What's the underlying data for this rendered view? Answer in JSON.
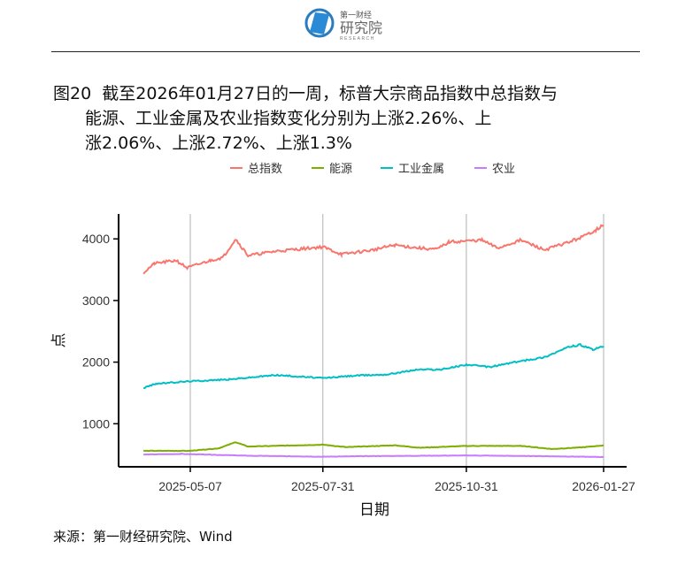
{
  "logo": {
    "line1": "第一财经",
    "line2": "研究院",
    "line3": "RESEARCH"
  },
  "title": {
    "prefix": "图20",
    "line1": "截至2026年01月27日的一周，标普大宗商品指数中总指数与",
    "line2": "能源、工业金属及农业指数变化分别为上涨2.26%、上",
    "line3": "涨2.06%、上涨2.72%、上涨1.3%"
  },
  "source": "来源：第一财经研究院、Wind",
  "chart_data": {
    "type": "line",
    "xlabel": "日期",
    "ylabel": "点",
    "legend_position": "top",
    "grid": "vertical major x only",
    "ylim": [
      0,
      4400
    ],
    "yticks": [
      1000,
      2000,
      3000,
      4000
    ],
    "xticks": [
      "2025-05-07",
      "2025-07-31",
      "2025-10-31",
      "2026-01-27"
    ],
    "series": [
      {
        "name": "总指数",
        "color": "#F8766D",
        "x": [
          "2025-04-07",
          "2025-04-14",
          "2025-04-28",
          "2025-05-05",
          "2025-05-20",
          "2025-05-28",
          "2025-06-05",
          "2025-06-13",
          "2025-07-01",
          "2025-07-31",
          "2025-08-12",
          "2025-09-01",
          "2025-09-15",
          "2025-10-01",
          "2025-10-12",
          "2025-10-20",
          "2025-11-10",
          "2025-11-20",
          "2025-12-05",
          "2025-12-20",
          "2026-01-05",
          "2026-01-15",
          "2026-01-22",
          "2026-01-27"
        ],
        "values": [
          3450,
          3600,
          3650,
          3530,
          3650,
          3700,
          4000,
          3730,
          3800,
          3870,
          3750,
          3820,
          3900,
          3850,
          3830,
          3950,
          3980,
          3850,
          3980,
          3820,
          3950,
          4050,
          4150,
          4220
        ]
      },
      {
        "name": "能源",
        "color": "#7CAE00",
        "x": [
          "2025-04-07",
          "2025-05-07",
          "2025-05-25",
          "2025-06-05",
          "2025-06-13",
          "2025-07-31",
          "2025-08-15",
          "2025-09-15",
          "2025-10-01",
          "2025-10-31",
          "2025-12-05",
          "2025-12-25",
          "2026-01-15",
          "2026-01-27"
        ],
        "values": [
          560,
          560,
          600,
          700,
          630,
          660,
          620,
          650,
          610,
          640,
          640,
          590,
          620,
          650
        ]
      },
      {
        "name": "工业金属",
        "color": "#00BFC4",
        "x": [
          "2025-04-07",
          "2025-04-15",
          "2025-05-07",
          "2025-06-01",
          "2025-07-01",
          "2025-07-31",
          "2025-08-20",
          "2025-09-10",
          "2025-09-30",
          "2025-10-15",
          "2025-10-31",
          "2025-11-15",
          "2025-12-01",
          "2025-12-20",
          "2026-01-05",
          "2026-01-12",
          "2026-01-20",
          "2026-01-27"
        ],
        "values": [
          1580,
          1650,
          1690,
          1720,
          1790,
          1740,
          1780,
          1800,
          1880,
          1880,
          1960,
          1920,
          2000,
          2080,
          2250,
          2280,
          2200,
          2260
        ]
      },
      {
        "name": "农业",
        "color": "#C77CFF",
        "x": [
          "2025-04-07",
          "2025-05-01",
          "2025-06-15",
          "2025-07-31",
          "2025-09-01",
          "2025-10-31",
          "2025-12-15",
          "2026-01-27"
        ],
        "values": [
          500,
          510,
          480,
          465,
          475,
          485,
          475,
          460
        ]
      }
    ]
  }
}
